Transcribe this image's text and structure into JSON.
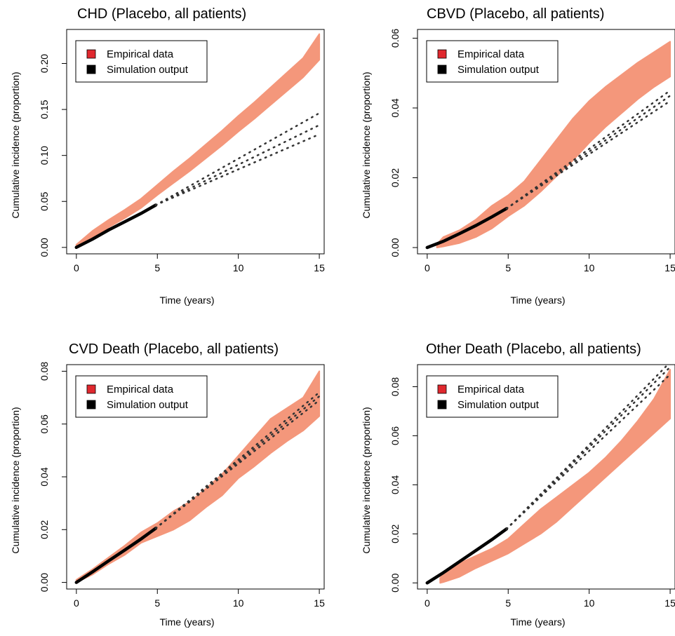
{
  "chart_data": [
    {
      "type": "area",
      "title": "CHD (Placebo, all patients)",
      "xlabel": "Time (years)",
      "ylabel": "Cumulative incidence (proportion)",
      "xlim": [
        -0.6,
        15.3
      ],
      "ylim": [
        -0.007,
        0.237
      ],
      "xticks": [
        "0",
        "5",
        "10",
        "15"
      ],
      "yticks": [
        "0.00",
        "0.05",
        "0.10",
        "0.15",
        "0.20"
      ],
      "legend": {
        "position": "top-left",
        "entries": [
          "Empirical data",
          "Simulation output"
        ]
      },
      "colors": {
        "empirical": "#f4977b",
        "simulation": "#000000",
        "legend_empirical": "#e0282e"
      },
      "series": [
        {
          "name": "Empirical data",
          "style": "band",
          "x": [
            0,
            1,
            2,
            3,
            4,
            5,
            6,
            7,
            8,
            9,
            10,
            11,
            12,
            13,
            14,
            15
          ],
          "lower": [
            0.0,
            0.01,
            0.022,
            0.032,
            0.043,
            0.057,
            0.07,
            0.083,
            0.097,
            0.111,
            0.126,
            0.14,
            0.155,
            0.17,
            0.185,
            0.204
          ],
          "upper": [
            0.003,
            0.018,
            0.03,
            0.041,
            0.053,
            0.068,
            0.083,
            0.097,
            0.112,
            0.127,
            0.143,
            0.158,
            0.174,
            0.19,
            0.206,
            0.232
          ]
        },
        {
          "name": "Simulation output",
          "style": "solid",
          "x": [
            0,
            1,
            2,
            3,
            4,
            4.9
          ],
          "y": [
            0.0,
            0.009,
            0.019,
            0.028,
            0.037,
            0.046
          ]
        },
        {
          "name": "Simulation projection",
          "style": "dotted",
          "x": [
            4.9,
            15
          ],
          "lines": [
            [
              0.046,
              0.146
            ],
            [
              0.046,
              0.133
            ],
            [
              0.046,
              0.123
            ]
          ]
        }
      ]
    },
    {
      "type": "area",
      "title": "CBVD (Placebo, all patients)",
      "xlabel": "Time (years)",
      "ylabel": "Cumulative incidence (proportion)",
      "xlim": [
        -0.6,
        15.3
      ],
      "ylim": [
        -0.0018,
        0.0625
      ],
      "xticks": [
        "0",
        "5",
        "10",
        "15"
      ],
      "yticks": [
        "0.00",
        "0.02",
        "0.04",
        "0.06"
      ],
      "legend": {
        "position": "top-left",
        "entries": [
          "Empirical data",
          "Simulation output"
        ]
      },
      "colors": {
        "empirical": "#f4977b",
        "simulation": "#000000",
        "legend_empirical": "#e0282e"
      },
      "series": [
        {
          "name": "Empirical data",
          "style": "band",
          "x": [
            0.6,
            1,
            2,
            3,
            4,
            5,
            6,
            7,
            8,
            9,
            10,
            11,
            12,
            13,
            14,
            15
          ],
          "lower": [
            0.0,
            0.0003,
            0.0013,
            0.003,
            0.0055,
            0.009,
            0.012,
            0.016,
            0.0205,
            0.025,
            0.03,
            0.0345,
            0.0385,
            0.0425,
            0.046,
            0.049
          ],
          "upper": [
            0.001,
            0.003,
            0.005,
            0.008,
            0.012,
            0.015,
            0.019,
            0.025,
            0.031,
            0.037,
            0.042,
            0.046,
            0.0495,
            0.053,
            0.056,
            0.059
          ]
        },
        {
          "name": "Simulation output",
          "style": "solid",
          "x": [
            0,
            1,
            2,
            3,
            4,
            4.9
          ],
          "y": [
            0.0,
            0.0018,
            0.004,
            0.0063,
            0.0088,
            0.0112
          ]
        },
        {
          "name": "Simulation projection",
          "style": "dotted",
          "x": [
            4.9,
            15
          ],
          "lines": [
            [
              0.0112,
              0.045
            ],
            [
              0.0112,
              0.0435
            ],
            [
              0.0112,
              0.042
            ]
          ]
        }
      ]
    },
    {
      "type": "area",
      "title": "CVD Death (Placebo, all patients)",
      "xlabel": "Time (years)",
      "ylabel": "Cumulative incidence (proportion)",
      "xlim": [
        -0.6,
        15.3
      ],
      "ylim": [
        -0.0025,
        0.0825
      ],
      "xticks": [
        "0",
        "5",
        "10",
        "15"
      ],
      "yticks": [
        "0.00",
        "0.02",
        "0.04",
        "0.06",
        "0.08"
      ],
      "legend": {
        "position": "top-left",
        "entries": [
          "Empirical data",
          "Simulation output"
        ]
      },
      "colors": {
        "empirical": "#f4977b",
        "simulation": "#000000",
        "legend_empirical": "#e0282e"
      },
      "series": [
        {
          "name": "Empirical data",
          "style": "band",
          "x": [
            0,
            1,
            2,
            3,
            4,
            5,
            6,
            7,
            8,
            9,
            10,
            11,
            12,
            13,
            14,
            15
          ],
          "lower": [
            0.0,
            0.003,
            0.007,
            0.0105,
            0.015,
            0.0175,
            0.02,
            0.0235,
            0.0285,
            0.033,
            0.0395,
            0.044,
            0.049,
            0.0535,
            0.0575,
            0.063
          ],
          "upper": [
            0.001,
            0.005,
            0.0095,
            0.014,
            0.019,
            0.0225,
            0.027,
            0.0305,
            0.0355,
            0.041,
            0.048,
            0.055,
            0.062,
            0.066,
            0.07,
            0.08
          ]
        },
        {
          "name": "Simulation output",
          "style": "solid",
          "x": [
            0,
            1,
            2,
            3,
            4,
            4.9
          ],
          "y": [
            0.0,
            0.004,
            0.0082,
            0.0123,
            0.0165,
            0.0205
          ]
        },
        {
          "name": "Simulation projection",
          "style": "dotted",
          "x": [
            4.9,
            15
          ],
          "lines": [
            [
              0.0205,
              0.072
            ],
            [
              0.0205,
              0.0705
            ],
            [
              0.0205,
              0.069
            ]
          ]
        }
      ]
    },
    {
      "type": "area",
      "title": "Other Death (Placebo, all patients)",
      "xlabel": "Time (years)",
      "ylabel": "Cumulative incidence (proportion)",
      "xlim": [
        -0.6,
        15.3
      ],
      "ylim": [
        -0.0025,
        0.089
      ],
      "xticks": [
        "0",
        "5",
        "10",
        "15"
      ],
      "yticks": [
        "0.00",
        "0.02",
        "0.04",
        "0.06",
        "0.08"
      ],
      "legend": {
        "position": "top-left",
        "entries": [
          "Empirical data",
          "Simulation output"
        ]
      },
      "colors": {
        "empirical": "#f4977b",
        "simulation": "#000000",
        "legend_empirical": "#e0282e"
      },
      "series": [
        {
          "name": "Empirical data",
          "style": "band",
          "x": [
            0.8,
            1,
            2,
            3,
            4,
            5,
            6,
            7,
            8,
            9,
            10,
            11,
            12,
            13,
            14,
            15
          ],
          "lower": [
            0.0,
            0.0003,
            0.0025,
            0.006,
            0.009,
            0.012,
            0.016,
            0.02,
            0.025,
            0.031,
            0.037,
            0.043,
            0.049,
            0.055,
            0.061,
            0.067
          ],
          "upper": [
            0.002,
            0.004,
            0.008,
            0.011,
            0.014,
            0.018,
            0.024,
            0.03,
            0.035,
            0.04,
            0.045,
            0.051,
            0.058,
            0.066,
            0.075,
            0.087
          ]
        },
        {
          "name": "Simulation output",
          "style": "solid",
          "x": [
            0,
            1,
            2,
            3,
            4,
            4.9
          ],
          "y": [
            0.0,
            0.0042,
            0.0087,
            0.0132,
            0.0177,
            0.022
          ]
        },
        {
          "name": "Simulation projection",
          "style": "dotted",
          "x": [
            4.9,
            15
          ],
          "lines": [
            [
              0.022,
              0.09
            ],
            [
              0.022,
              0.088
            ],
            [
              0.022,
              0.085
            ]
          ]
        }
      ]
    }
  ]
}
